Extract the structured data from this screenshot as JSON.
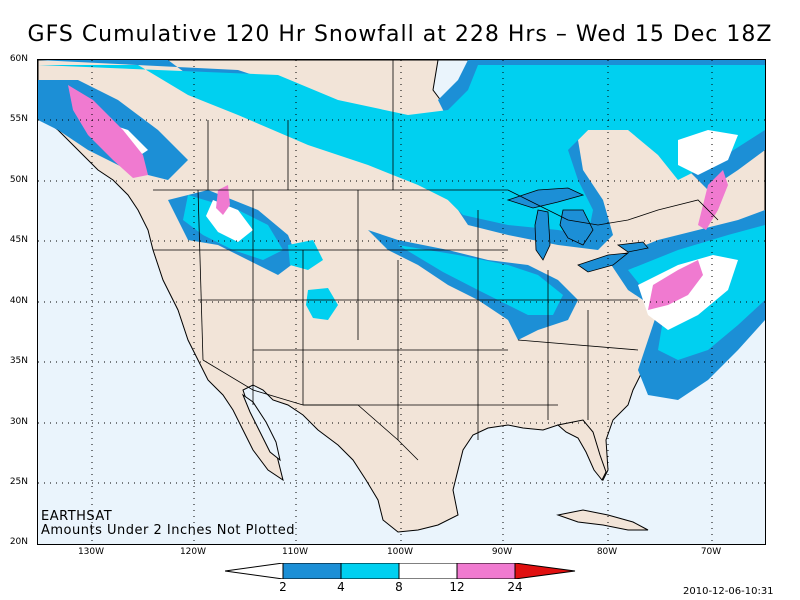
{
  "title": "GFS Cumulative 120 Hr Snowfall at 228 Hrs – Wed 15 Dec 18Z",
  "brand": "EARTHSAT",
  "note": "Amounts Under 2 Inches Not Plotted",
  "timestamp": "2010-12-06-10:31",
  "latitude_labels": [
    "60N",
    "55N",
    "50N",
    "45N",
    "40N",
    "35N",
    "30N",
    "25N",
    "20N"
  ],
  "longitude_labels": [
    "130W",
    "120W",
    "110W",
    "100W",
    "90W",
    "80W",
    "70W"
  ],
  "legend": {
    "unit": "inches",
    "thresholds": [
      "2",
      "4",
      "8",
      "12",
      "24"
    ],
    "colors": {
      "2_to_4": "#1c8fd6",
      "4_to_8": "#00d0f0",
      "8_to_12": "#ffffff",
      "12_to_24": "#f07ad0",
      "over_24": "#e01010"
    }
  },
  "colors": {
    "land": "#f2e4d8",
    "water": "#eaf4fc",
    "borders": "#000000"
  }
}
